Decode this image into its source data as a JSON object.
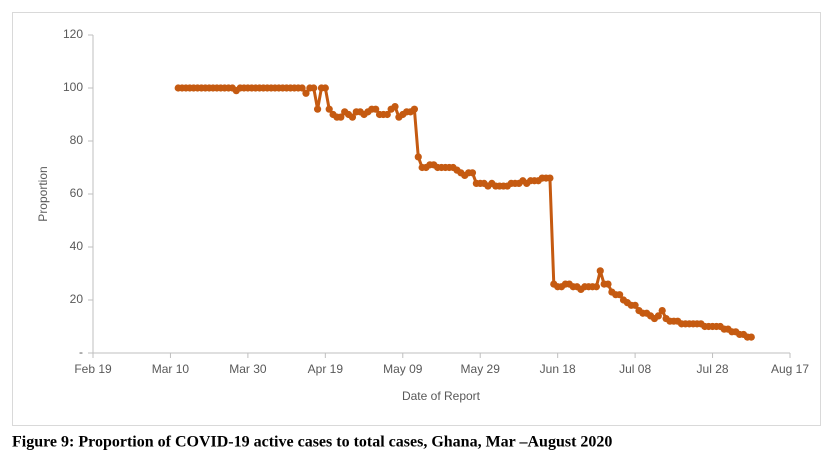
{
  "chart_data": {
    "type": "line",
    "x_label": "Date of Report",
    "y_label": "Proportion",
    "caption": "Figure 9: Proportion of COVID-19 active cases to total cases, Ghana, Mar –August 2020",
    "xlim": [
      "Feb 19",
      "Aug 17"
    ],
    "xticks": [
      "Feb 19",
      "Mar 10",
      "Mar 30",
      "Apr 19",
      "May 09",
      "May 29",
      "Jun 18",
      "Jul 08",
      "Jul 28",
      "Aug 17"
    ],
    "ylim": [
      0,
      120
    ],
    "yticks": [
      {
        "value": 0,
        "label": "-"
      },
      20,
      40,
      60,
      80,
      100,
      120
    ],
    "grid": false,
    "series": [
      {
        "color": "#c55a11",
        "x": [
          "Mar 12",
          "Mar 13",
          "Mar 14",
          "Mar 15",
          "Mar 16",
          "Mar 17",
          "Mar 18",
          "Mar 19",
          "Mar 20",
          "Mar 21",
          "Mar 22",
          "Mar 23",
          "Mar 24",
          "Mar 25",
          "Mar 26",
          "Mar 27",
          "Mar 28",
          "Mar 29",
          "Mar 30",
          "Mar 31",
          "Apr 01",
          "Apr 02",
          "Apr 03",
          "Apr 04",
          "Apr 05",
          "Apr 06",
          "Apr 07",
          "Apr 08",
          "Apr 09",
          "Apr 10",
          "Apr 11",
          "Apr 12",
          "Apr 13",
          "Apr 14",
          "Apr 15",
          "Apr 16",
          "Apr 17",
          "Apr 18",
          "Apr 19",
          "Apr 20",
          "Apr 21",
          "Apr 22",
          "Apr 23",
          "Apr 24",
          "Apr 25",
          "Apr 26",
          "Apr 27",
          "Apr 28",
          "Apr 29",
          "Apr 30",
          "May 01",
          "May 02",
          "May 03",
          "May 04",
          "May 05",
          "May 06",
          "May 07",
          "May 08",
          "May 09",
          "May 10",
          "May 11",
          "May 12",
          "May 13",
          "May 14",
          "May 15",
          "May 16",
          "May 17",
          "May 18",
          "May 19",
          "May 20",
          "May 21",
          "May 22",
          "May 23",
          "May 24",
          "May 25",
          "May 26",
          "May 27",
          "May 28",
          "May 29",
          "May 30",
          "May 31",
          "Jun 01",
          "Jun 02",
          "Jun 03",
          "Jun 04",
          "Jun 05",
          "Jun 06",
          "Jun 07",
          "Jun 08",
          "Jun 09",
          "Jun 10",
          "Jun 11",
          "Jun 12",
          "Jun 13",
          "Jun 14",
          "Jun 15",
          "Jun 16",
          "Jun 17",
          "Jun 18",
          "Jun 19",
          "Jun 20",
          "Jun 21",
          "Jun 22",
          "Jun 23",
          "Jun 24",
          "Jun 25",
          "Jun 26",
          "Jun 27",
          "Jun 28",
          "Jun 29",
          "Jun 30",
          "Jul 01",
          "Jul 02",
          "Jul 03",
          "Jul 04",
          "Jul 05",
          "Jul 06",
          "Jul 07",
          "Jul 08",
          "Jul 09",
          "Jul 10",
          "Jul 11",
          "Jul 12",
          "Jul 13",
          "Jul 14",
          "Jul 15",
          "Jul 16",
          "Jul 17",
          "Jul 18",
          "Jul 19",
          "Jul 20",
          "Jul 21",
          "Jul 22",
          "Jul 23",
          "Jul 24",
          "Jul 25",
          "Jul 26",
          "Jul 27",
          "Jul 28",
          "Jul 29",
          "Jul 30",
          "Jul 31",
          "Aug 01",
          "Aug 02",
          "Aug 03",
          "Aug 04",
          "Aug 05",
          "Aug 06",
          "Aug 07"
        ],
        "values": [
          100,
          100,
          100,
          100,
          100,
          100,
          100,
          100,
          100,
          100,
          100,
          100,
          100,
          100,
          100,
          99,
          100,
          100,
          100,
          100,
          100,
          100,
          100,
          100,
          100,
          100,
          100,
          100,
          100,
          100,
          100,
          100,
          100,
          98,
          100,
          100,
          92,
          100,
          100,
          92,
          90,
          89,
          89,
          91,
          90,
          89,
          91,
          91,
          90,
          91,
          92,
          92,
          90,
          90,
          90,
          92,
          93,
          89,
          90,
          91,
          91,
          92,
          74,
          70,
          70,
          71,
          71,
          70,
          70,
          70,
          70,
          70,
          69,
          68,
          67,
          68,
          68,
          64,
          64,
          64,
          63,
          64,
          63,
          63,
          63,
          63,
          64,
          64,
          64,
          65,
          64,
          65,
          65,
          65,
          66,
          66,
          66,
          26,
          25,
          25,
          26,
          26,
          25,
          25,
          24,
          25,
          25,
          25,
          25,
          31,
          26,
          26,
          23,
          22,
          22,
          20,
          19,
          18,
          18,
          16,
          15,
          15,
          14,
          13,
          14,
          16,
          13,
          12,
          12,
          12,
          11,
          11,
          11,
          11,
          11,
          11,
          10,
          10,
          10,
          10,
          10,
          9,
          9,
          8,
          8,
          7,
          7,
          6,
          6
        ]
      }
    ]
  }
}
